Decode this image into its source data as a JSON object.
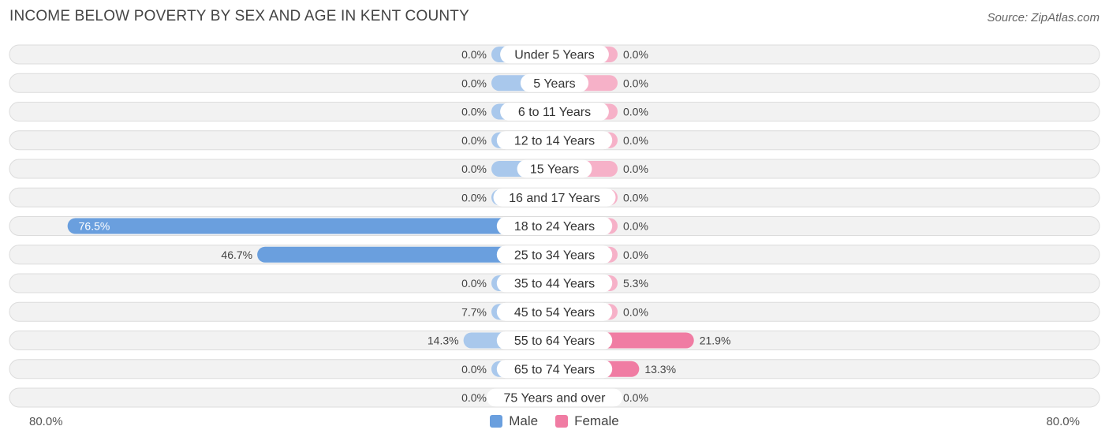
{
  "title": "INCOME BELOW POVERTY BY SEX AND AGE IN KENT COUNTY",
  "source": "Source: ZipAtlas.com",
  "axis": {
    "left_label": "80.0%",
    "right_label": "80.0%"
  },
  "legend": [
    {
      "label": "Male",
      "color": "#6a9fde"
    },
    {
      "label": "Female",
      "color": "#f07ca3"
    }
  ],
  "chart_data": {
    "type": "bar",
    "orientation": "horizontal-diverging",
    "xlim": [
      -80,
      80
    ],
    "categories": [
      "Under 5 Years",
      "5 Years",
      "6 to 11 Years",
      "12 to 14 Years",
      "15 Years",
      "16 and 17 Years",
      "18 to 24 Years",
      "25 to 34 Years",
      "35 to 44 Years",
      "45 to 54 Years",
      "55 to 64 Years",
      "65 to 74 Years",
      "75 Years and over"
    ],
    "series": [
      {
        "name": "Male",
        "values": [
          0.0,
          0.0,
          0.0,
          0.0,
          0.0,
          0.0,
          76.5,
          46.7,
          0.0,
          7.7,
          14.3,
          0.0,
          0.0
        ],
        "labels": [
          "0.0%",
          "0.0%",
          "0.0%",
          "0.0%",
          "0.0%",
          "0.0%",
          "76.5%",
          "46.7%",
          "0.0%",
          "7.7%",
          "14.3%",
          "0.0%",
          "0.0%"
        ]
      },
      {
        "name": "Female",
        "values": [
          0.0,
          0.0,
          0.0,
          0.0,
          0.0,
          0.0,
          0.0,
          0.0,
          5.3,
          0.0,
          21.9,
          13.3,
          0.0
        ],
        "labels": [
          "0.0%",
          "0.0%",
          "0.0%",
          "0.0%",
          "0.0%",
          "0.0%",
          "0.0%",
          "0.0%",
          "5.3%",
          "0.0%",
          "21.9%",
          "13.3%",
          "0.0%"
        ]
      }
    ],
    "colors": {
      "male_strong": "#6a9fde",
      "male_light": "#a9c8ec",
      "female_strong": "#f07ca3",
      "female_light": "#f6b1c8",
      "row_bg": "#f2f2f2",
      "row_border": "#dcdcdc"
    }
  }
}
